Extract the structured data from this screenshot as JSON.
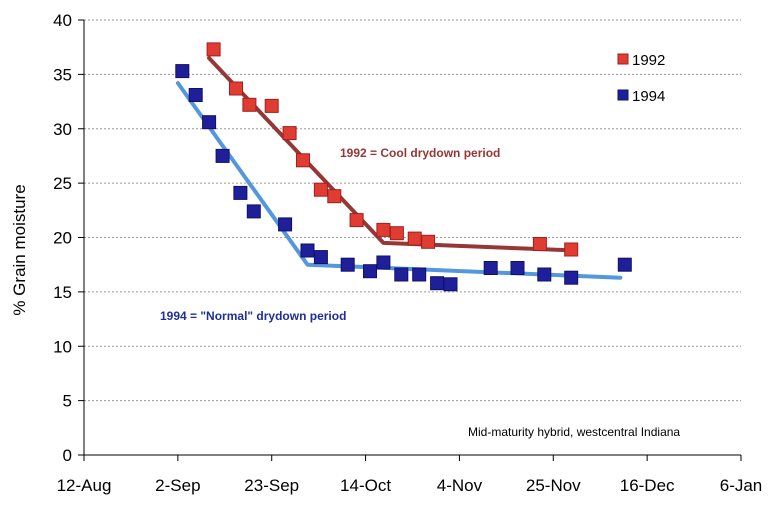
{
  "chart_data": {
    "type": "scatter",
    "ylabel": "% Grain moisture",
    "xlabel": "",
    "ylim": [
      0,
      40
    ],
    "yticks": [
      0,
      5,
      10,
      15,
      20,
      25,
      30,
      35,
      40
    ],
    "xlim_days": [
      0,
      147
    ],
    "xticks": [
      {
        "label": "12-Aug",
        "day": 0
      },
      {
        "label": "2-Sep",
        "day": 21
      },
      {
        "label": "23-Sep",
        "day": 42
      },
      {
        "label": "14-Oct",
        "day": 63
      },
      {
        "label": "4-Nov",
        "day": 84
      },
      {
        "label": "25-Nov",
        "day": 105
      },
      {
        "label": "16-Dec",
        "day": 126
      },
      {
        "label": "6-Jan",
        "day": 147
      }
    ],
    "grid": "horizontal dashed",
    "legend_position": "top-right",
    "series": [
      {
        "name": "1992",
        "marker_color": "#E03C31",
        "marker_edge": "#A02020",
        "trend_color": "#953735",
        "points": [
          [
            29,
            37.3
          ],
          [
            34,
            33.7
          ],
          [
            37,
            32.2
          ],
          [
            42,
            32.1
          ],
          [
            46,
            29.6
          ],
          [
            49,
            27.1
          ],
          [
            53,
            24.4
          ],
          [
            56,
            23.8
          ],
          [
            61,
            21.6
          ],
          [
            67,
            20.7
          ],
          [
            70,
            20.4
          ],
          [
            74,
            19.9
          ],
          [
            77,
            19.6
          ],
          [
            102,
            19.4
          ],
          [
            109,
            18.9
          ]
        ],
        "trend": [
          [
            28,
            36.5
          ],
          [
            67,
            19.5
          ],
          [
            110,
            18.8
          ]
        ]
      },
      {
        "name": "1994",
        "marker_color": "#1F1F99",
        "marker_edge": "#10106A",
        "trend_color": "#5597DD",
        "points": [
          [
            22,
            35.3
          ],
          [
            25,
            33.1
          ],
          [
            28,
            30.6
          ],
          [
            31,
            27.5
          ],
          [
            35,
            24.1
          ],
          [
            38,
            22.4
          ],
          [
            45,
            21.2
          ],
          [
            50,
            18.8
          ],
          [
            53,
            18.2
          ],
          [
            59,
            17.5
          ],
          [
            64,
            16.9
          ],
          [
            67,
            17.7
          ],
          [
            71,
            16.6
          ],
          [
            75,
            16.6
          ],
          [
            79,
            15.8
          ],
          [
            82,
            15.7
          ],
          [
            91,
            17.2
          ],
          [
            97,
            17.2
          ],
          [
            103,
            16.6
          ],
          [
            109,
            16.3
          ],
          [
            121,
            17.5
          ]
        ],
        "trend": [
          [
            21,
            34.2
          ],
          [
            50,
            17.5
          ],
          [
            120,
            16.3
          ]
        ]
      }
    ],
    "annotations": [
      {
        "text": "1992 = Cool drydown period",
        "color": "#953735"
      },
      {
        "text": "1994 = \"Normal\" drydown period",
        "color": "#1F2E99"
      },
      {
        "text": "Mid-maturity hybrid, westcentral Indiana",
        "color": "#000000"
      }
    ]
  }
}
